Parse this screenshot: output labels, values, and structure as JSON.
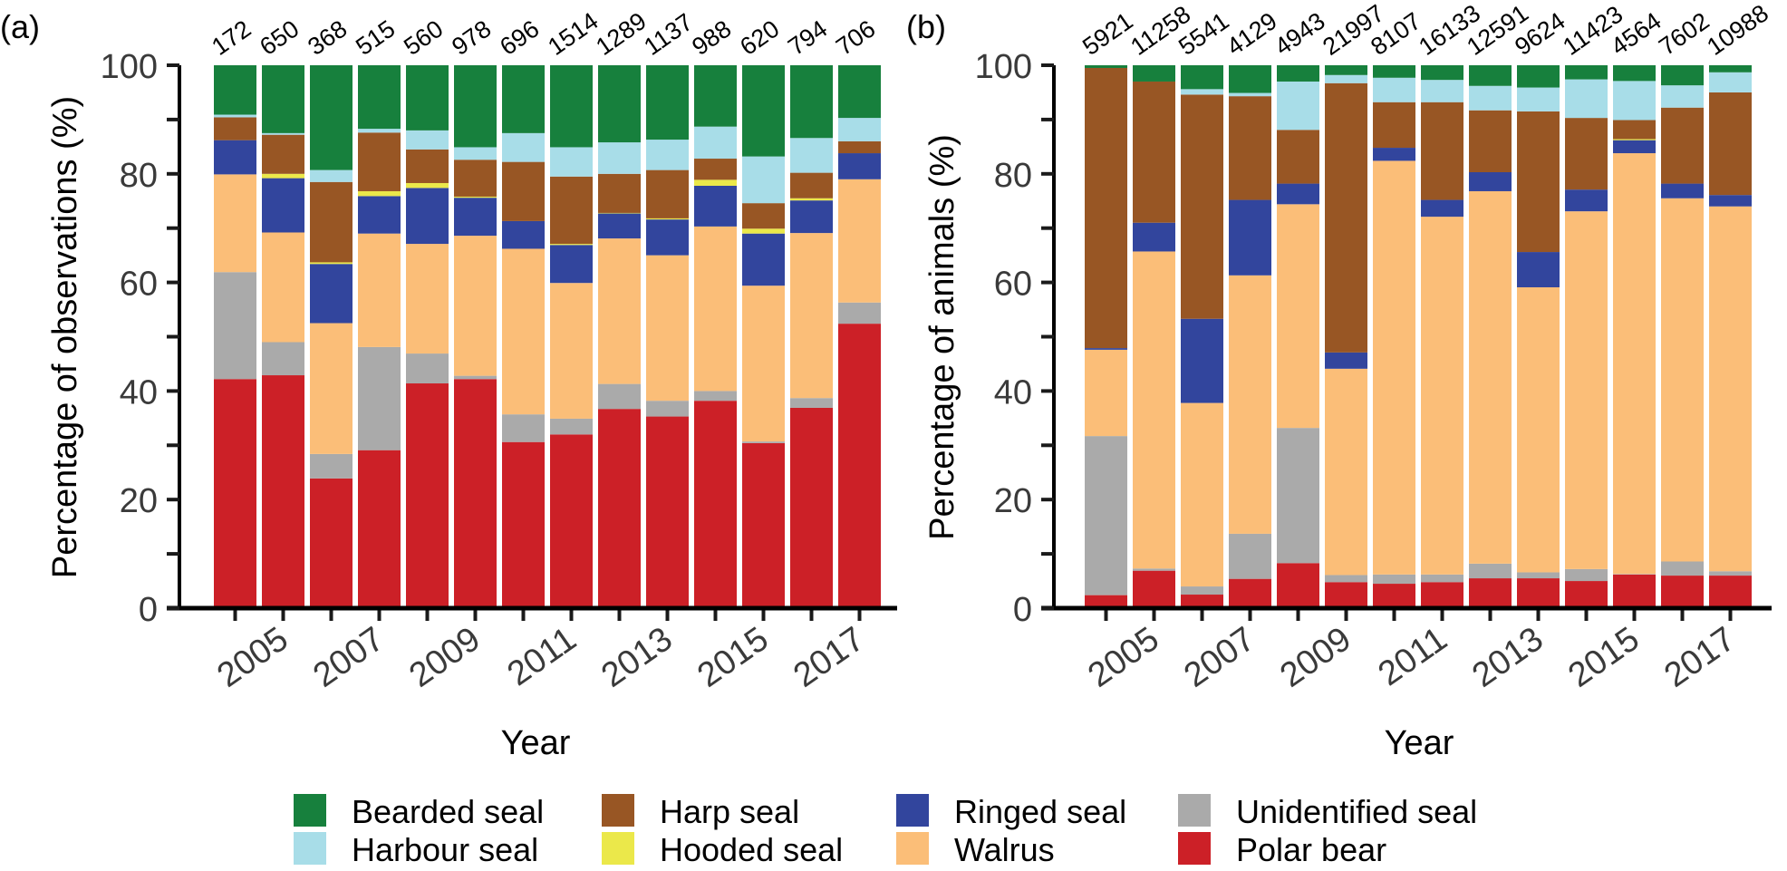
{
  "chart_data": {
    "type": "bar",
    "stacked": true,
    "legend": {
      "placement": "bottom",
      "entries": [
        {
          "key": "bearded",
          "label": "Bearded seal",
          "color": "#17803d"
        },
        {
          "key": "harp",
          "label": "Harp seal",
          "color": "#985624"
        },
        {
          "key": "ringed",
          "label": "Ringed seal",
          "color": "#32459d"
        },
        {
          "key": "unidentified",
          "label": "Unidentified seal",
          "color": "#aaaaaa"
        },
        {
          "key": "harbour",
          "label": "Harbour seal",
          "color": "#a8dde8"
        },
        {
          "key": "hooded",
          "label": "Hooded seal",
          "color": "#ebe84a"
        },
        {
          "key": "walrus",
          "label": "Walrus",
          "color": "#fbbe78"
        },
        {
          "key": "polar",
          "label": "Polar bear",
          "color": "#cc2027"
        }
      ]
    },
    "stack_order_bottom_to_top": [
      "polar",
      "unidentified",
      "walrus",
      "ringed",
      "hooded",
      "harp",
      "harbour",
      "bearded"
    ],
    "categories": [
      "2004",
      "2005",
      "2006",
      "2007",
      "2008",
      "2009",
      "2010",
      "2011",
      "2012",
      "2013",
      "2014",
      "2015",
      "2016",
      "2017"
    ],
    "xtick_labels": [
      "",
      "2005",
      "",
      "2007",
      "",
      "2009",
      "",
      "2011",
      "",
      "2013",
      "",
      "2015",
      "",
      "2017"
    ],
    "panels": [
      {
        "panel_label": "(a)",
        "ylabel": "Percentage of observations (%)",
        "xlabel": "Year",
        "ylim": [
          0,
          100
        ],
        "yticks": [
          0,
          20,
          40,
          60,
          80,
          100
        ],
        "totals": [
          "172",
          "650",
          "368",
          "515",
          "560",
          "978",
          "696",
          "1514",
          "1289",
          "1137",
          "988",
          "620",
          "794",
          "706"
        ],
        "series": {
          "polar": [
            42.2,
            42.9,
            23.9,
            29.1,
            41.4,
            42.2,
            30.6,
            32.0,
            36.7,
            35.3,
            38.2,
            30.4,
            36.9,
            52.4
          ],
          "unidentified": [
            19.7,
            6.1,
            4.5,
            19.0,
            5.5,
            0.6,
            5.1,
            2.9,
            4.6,
            2.9,
            1.8,
            0.3,
            1.8,
            3.9
          ],
          "walrus": [
            18.0,
            20.2,
            24.1,
            20.9,
            20.2,
            25.8,
            30.5,
            25.0,
            26.8,
            26.8,
            30.3,
            28.7,
            30.4,
            22.7
          ],
          "ringed": [
            6.3,
            10.0,
            10.9,
            6.9,
            10.3,
            7.0,
            5.1,
            7.0,
            4.6,
            6.6,
            7.5,
            9.6,
            6.0,
            4.8
          ],
          "hooded": [
            0.0,
            0.8,
            0.3,
            0.9,
            0.9,
            0.2,
            0.0,
            0.2,
            0.1,
            0.2,
            1.1,
            0.9,
            0.4,
            0.0
          ],
          "harp": [
            4.2,
            7.2,
            14.8,
            10.8,
            6.2,
            6.8,
            10.9,
            12.4,
            7.2,
            8.9,
            3.9,
            4.7,
            4.7,
            2.2
          ],
          "harbour": [
            0.5,
            0.3,
            2.2,
            0.7,
            3.5,
            2.3,
            5.3,
            5.4,
            5.8,
            5.6,
            5.9,
            8.6,
            6.4,
            4.3
          ],
          "bearded": [
            9.1,
            12.5,
            19.3,
            11.7,
            12.0,
            15.1,
            12.5,
            15.1,
            14.2,
            13.7,
            11.3,
            16.8,
            13.4,
            9.7
          ]
        }
      },
      {
        "panel_label": "(b)",
        "ylabel": "Percentage of animals (%)",
        "xlabel": "Year",
        "ylim": [
          0,
          100
        ],
        "yticks": [
          0,
          20,
          40,
          60,
          80,
          100
        ],
        "totals": [
          "5921",
          "11258",
          "5541",
          "4129",
          "4943",
          "21997",
          "8107",
          "16133",
          "12591",
          "9624",
          "11423",
          "4564",
          "7602",
          "10988"
        ],
        "series": {
          "polar": [
            2.4,
            6.9,
            2.5,
            5.4,
            8.3,
            4.8,
            4.5,
            4.8,
            5.5,
            5.5,
            5.0,
            6.2,
            6.0,
            6.0
          ],
          "unidentified": [
            29.3,
            0.4,
            1.5,
            8.3,
            24.9,
            1.3,
            1.7,
            1.4,
            2.7,
            1.1,
            2.2,
            0.1,
            2.6,
            0.8
          ],
          "walrus": [
            15.9,
            58.4,
            33.8,
            47.6,
            41.2,
            38.0,
            76.2,
            65.9,
            68.6,
            52.5,
            65.9,
            77.5,
            66.9,
            67.2
          ],
          "ringed": [
            0.3,
            5.3,
            15.5,
            13.9,
            3.8,
            3.0,
            2.4,
            3.1,
            3.5,
            6.5,
            4.0,
            2.4,
            2.7,
            2.1
          ],
          "hooded": [
            0.0,
            0.0,
            0.0,
            0.0,
            0.0,
            0.0,
            0.0,
            0.0,
            0.0,
            0.0,
            0.0,
            0.2,
            0.0,
            0.0
          ],
          "harp": [
            51.6,
            26.0,
            41.3,
            19.1,
            9.9,
            49.6,
            8.4,
            18.0,
            11.4,
            25.9,
            13.2,
            3.5,
            14.0,
            18.9
          ],
          "harbour": [
            0.0,
            0.0,
            1.0,
            0.6,
            8.9,
            1.5,
            4.5,
            4.1,
            4.5,
            4.4,
            7.1,
            7.2,
            4.1,
            3.7
          ],
          "bearded": [
            0.5,
            3.0,
            4.4,
            5.1,
            3.0,
            1.8,
            2.3,
            2.7,
            3.8,
            4.1,
            2.6,
            2.9,
            3.7,
            1.3
          ]
        }
      }
    ]
  }
}
